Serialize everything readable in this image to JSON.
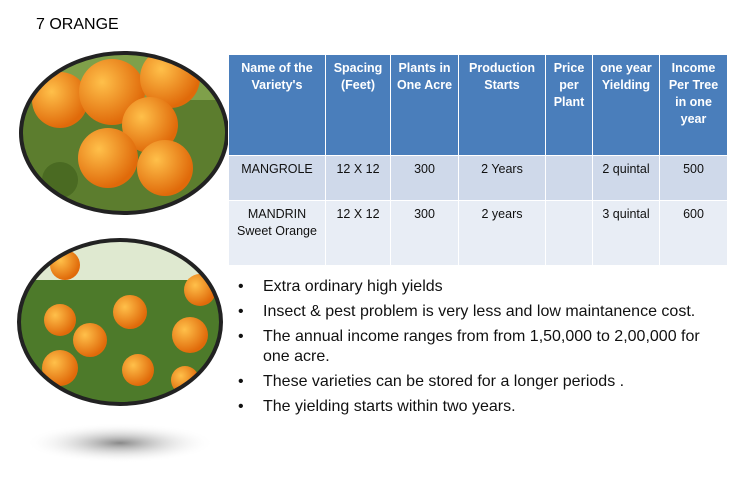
{
  "title": "7 ORANGE",
  "table": {
    "header": [
      "Name of the Variety's",
      "Spacing (Feet)",
      "Plants in One Acre",
      "Production Starts",
      "Price per Plant",
      "one year Yielding",
      "Income Per Tree in one year"
    ],
    "rows": [
      [
        "MANGROLE",
        "12 X 12",
        "300",
        "2 Years",
        null,
        "2 quintal",
        "500"
      ],
      [
        "MANDRIN Sweet Orange",
        "12 X 12",
        "300",
        "2 years",
        null,
        "3 quintal",
        "600"
      ]
    ]
  },
  "bullets": [
    "Extra ordinary high yields",
    "Insect  & pest problem is very less and low maintanence cost.",
    "The annual income ranges from from 1,50,000 to 2,00,000 for one acre.",
    "These varieties can be stored for a longer periods .",
    "The yielding starts within two years."
  ]
}
